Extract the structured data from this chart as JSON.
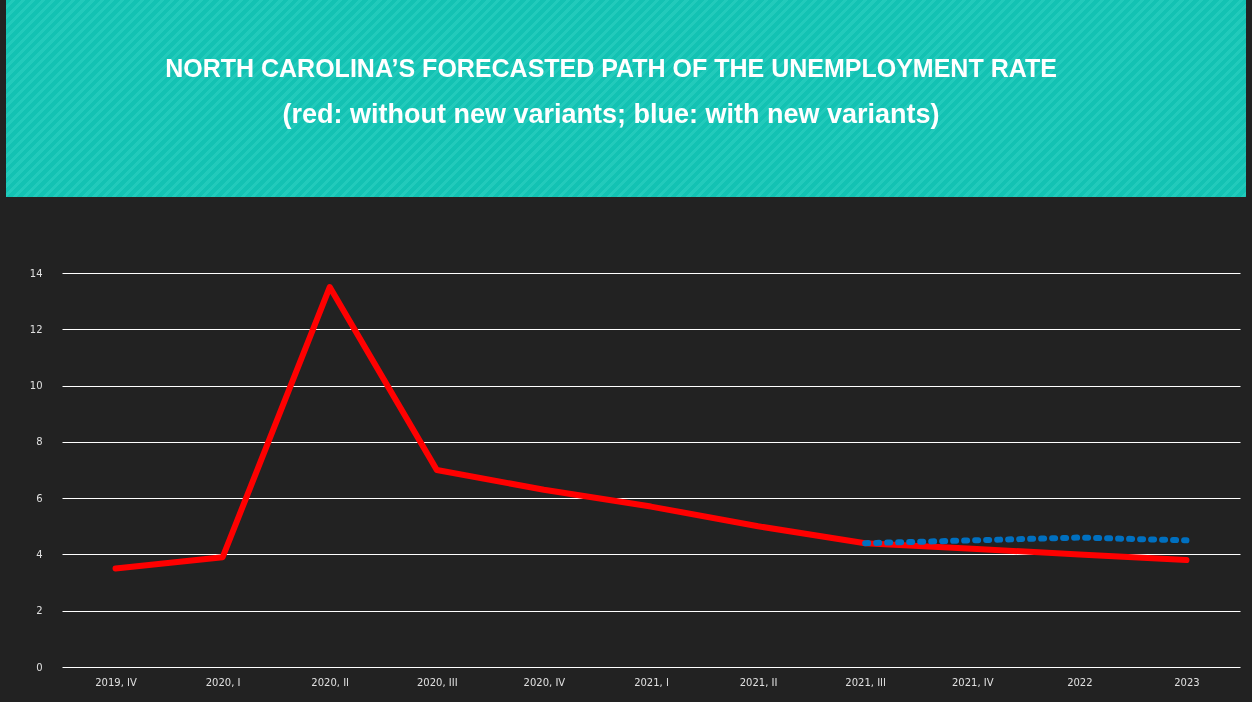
{
  "chart_data": {
    "type": "line",
    "title": "NORTH CAROLINA’S FORECASTED PATH OF THE UNEMPLOYMENT RATE",
    "subtitle": "(red: without new variants;  blue: with new variants)",
    "categories": [
      "2019, IV",
      "2020, I",
      "2020, II",
      "2020, III",
      "2020, IV",
      "2021, I",
      "2021, II",
      "2021, III",
      "2021, IV",
      "2022",
      "2023"
    ],
    "series": [
      {
        "color": "#ff0000",
        "line_style": "solid",
        "values": [
          3.5,
          3.9,
          13.5,
          7.0,
          6.3,
          5.7,
          5.0,
          4.4,
          4.2,
          4.0,
          3.8
        ]
      },
      {
        "color": "#0070c0",
        "line_style": "dotted",
        "values": [
          null,
          null,
          null,
          null,
          null,
          null,
          null,
          4.4,
          4.5,
          4.6,
          4.5
        ]
      }
    ],
    "ylim": [
      0,
      14
    ],
    "yticks": [
      0,
      2,
      4,
      6,
      8,
      10,
      12,
      14
    ],
    "grid": "y"
  }
}
